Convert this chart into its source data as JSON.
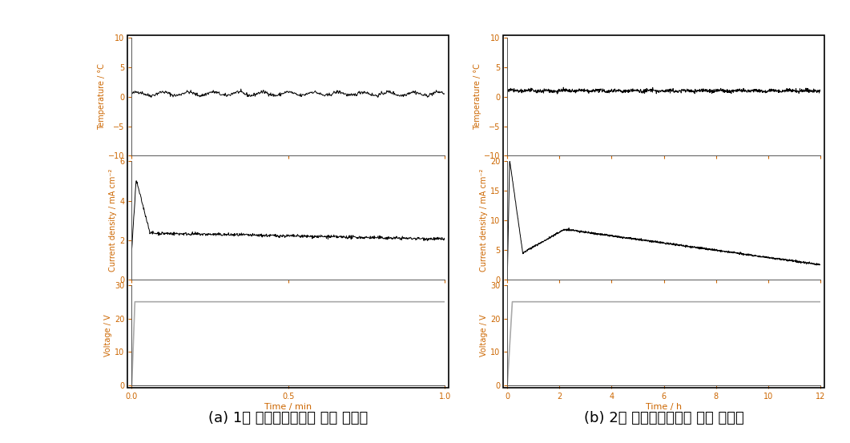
{
  "panel_a": {
    "title": "(a) 1차 양극산화시간에 따른 그래프",
    "xlabel": "Time / min",
    "xmin": 0.0,
    "xmax": 1.0,
    "xticks": [
      0.0,
      0.5,
      1.0
    ],
    "xtick_labels": [
      "0.0",
      "0.5",
      "1.0"
    ],
    "temp_ylim": [
      -10,
      10
    ],
    "temp_yticks": [
      -10,
      -5,
      0,
      5,
      10
    ],
    "temp_mean": 0.5,
    "temp_noise": 0.15,
    "temp_wave_amp": 0.3,
    "temp_wave_freq": 25,
    "current_ylim": [
      0,
      6
    ],
    "current_yticks": [
      0,
      2,
      4,
      6
    ],
    "current_init": 1.5,
    "current_spike": 5.0,
    "current_settle": 2.25,
    "current_final": 2.05,
    "voltage_ylim": [
      0,
      30
    ],
    "voltage_yticks": [
      0,
      10,
      20,
      30
    ],
    "voltage_level": 25.0
  },
  "panel_b": {
    "title": "(b) 2차 양극산화시간에 따른 그래프",
    "xlabel": "Time / h",
    "xmin": 0,
    "xmax": 12,
    "xticks": [
      0,
      2,
      4,
      6,
      8,
      10,
      12
    ],
    "xtick_labels": [
      "0",
      "2",
      "4",
      "6",
      "8",
      "10",
      "12"
    ],
    "temp_ylim": [
      -10,
      10
    ],
    "temp_yticks": [
      -10,
      -5,
      0,
      5,
      10
    ],
    "temp_mean": 1.0,
    "temp_noise": 0.15,
    "temp_wave_amp": 0.1,
    "temp_wave_freq": 3,
    "current_ylim": [
      0,
      20
    ],
    "current_yticks": [
      0,
      5,
      10,
      15,
      20
    ],
    "current_spike": 20.0,
    "current_dip": 4.5,
    "current_dip_time": 0.6,
    "current_peak": 8.5,
    "current_peak_time": 2.2,
    "current_final": 2.5,
    "voltage_ylim": [
      0,
      30
    ],
    "voltage_yticks": [
      0,
      10,
      20,
      30
    ],
    "voltage_level": 25.0
  },
  "ylabel_temp": "Temperature / °C",
  "ylabel_current": "Current density / mA cm⁻²",
  "ylabel_voltage": "Voltage / V",
  "line_color": "#000000",
  "axis_label_color": "#cc6600",
  "voltage_line_color": "#aaaaaa",
  "tick_label_color": "#cc6600",
  "figure_bg": "#ffffff",
  "box_color": "#000000",
  "caption_fontsize": 13
}
